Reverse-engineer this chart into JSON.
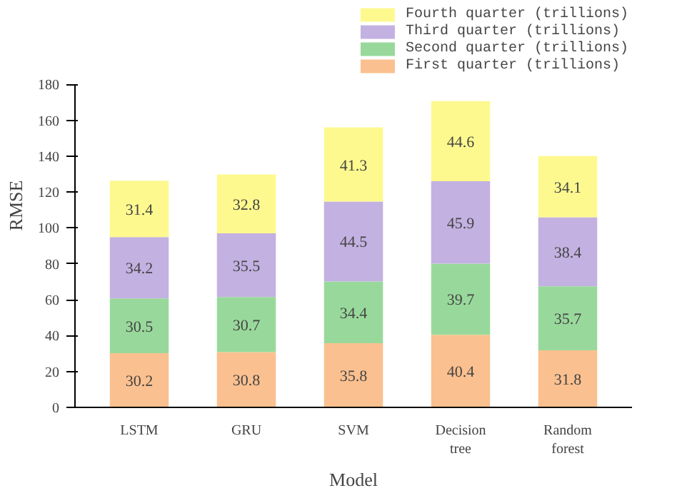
{
  "chart_data": {
    "type": "bar",
    "stacked": true,
    "xlabel": "Model",
    "ylabel": "RMSE",
    "categories": [
      "LSTM",
      "GRU",
      "SVM",
      "Decision tree",
      "Random forest"
    ],
    "series": [
      {
        "name": "First quarter (trillions)",
        "color": "#fbc08f",
        "values": [
          30.2,
          30.8,
          35.8,
          40.4,
          31.8
        ]
      },
      {
        "name": "Second quarter (trillions)",
        "color": "#98d99b",
        "values": [
          30.5,
          30.7,
          34.4,
          39.7,
          35.7
        ]
      },
      {
        "name": "Third quarter (trillions)",
        "color": "#c3b1e1",
        "values": [
          34.2,
          35.5,
          44.5,
          45.9,
          38.4
        ]
      },
      {
        "name": "Fourth quarter (trillions)",
        "color": "#fdf98f",
        "values": [
          31.4,
          32.8,
          41.3,
          44.6,
          34.1
        ]
      }
    ],
    "ylim": [
      0,
      180
    ],
    "yticks": [
      0,
      20,
      40,
      60,
      80,
      100,
      120,
      140,
      160,
      180
    ],
    "data_labels": true,
    "legend": "top right",
    "grid": false
  }
}
